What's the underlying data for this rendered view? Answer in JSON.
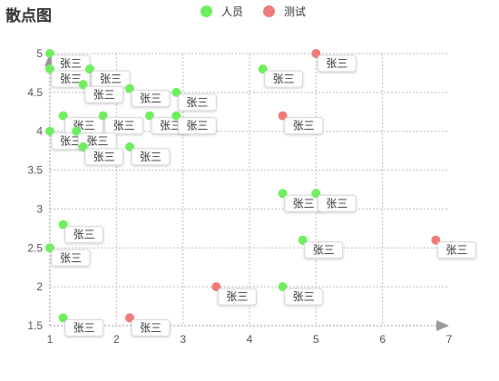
{
  "chart_data": {
    "type": "scatter",
    "title": "散点图",
    "xlim": [
      1,
      7
    ],
    "ylim": [
      1.5,
      5
    ],
    "xticks": [
      1,
      2,
      3,
      4,
      5,
      6,
      7
    ],
    "yticks": [
      1.5,
      2,
      2.5,
      3,
      3.5,
      4,
      4.5,
      5
    ],
    "grid": "dashed",
    "legend_position": "top-center",
    "series": [
      {
        "name": "人员",
        "color": "#6ef05e",
        "points": [
          {
            "x": 1.0,
            "y": 5.0,
            "label": "张三"
          },
          {
            "x": 1.0,
            "y": 4.8,
            "label": "张三"
          },
          {
            "x": 1.6,
            "y": 4.8,
            "label": "张三"
          },
          {
            "x": 1.5,
            "y": 4.6,
            "label": "张三"
          },
          {
            "x": 2.2,
            "y": 4.55,
            "label": "张三"
          },
          {
            "x": 2.9,
            "y": 4.5,
            "label": "张三"
          },
          {
            "x": 4.2,
            "y": 4.8,
            "label": "张三"
          },
          {
            "x": 1.2,
            "y": 4.2,
            "label": "张三"
          },
          {
            "x": 1.8,
            "y": 4.2,
            "label": "张三"
          },
          {
            "x": 2.5,
            "y": 4.2,
            "label": "张三"
          },
          {
            "x": 2.9,
            "y": 4.2,
            "label": "张三"
          },
          {
            "x": 1.0,
            "y": 4.0,
            "label": "张三"
          },
          {
            "x": 1.4,
            "y": 4.0,
            "label": "张三"
          },
          {
            "x": 1.5,
            "y": 3.8,
            "label": "张三"
          },
          {
            "x": 2.2,
            "y": 3.8,
            "label": "张三"
          },
          {
            "x": 4.5,
            "y": 3.2,
            "label": "张三"
          },
          {
            "x": 5.0,
            "y": 3.2,
            "label": "张三"
          },
          {
            "x": 1.2,
            "y": 2.8,
            "label": "张三"
          },
          {
            "x": 1.0,
            "y": 2.5,
            "label": "张三"
          },
          {
            "x": 4.8,
            "y": 2.6,
            "label": "张三"
          },
          {
            "x": 4.5,
            "y": 2.0,
            "label": "张三"
          },
          {
            "x": 1.2,
            "y": 1.6,
            "label": "张三"
          }
        ]
      },
      {
        "name": "测试",
        "color": "#f07a7a",
        "points": [
          {
            "x": 5.0,
            "y": 5.0,
            "label": "张三"
          },
          {
            "x": 4.5,
            "y": 4.2,
            "label": "张三"
          },
          {
            "x": 6.8,
            "y": 2.6,
            "label": "张三"
          },
          {
            "x": 3.5,
            "y": 2.0,
            "label": "张三"
          },
          {
            "x": 2.2,
            "y": 1.6,
            "label": "张三"
          }
        ]
      }
    ]
  }
}
